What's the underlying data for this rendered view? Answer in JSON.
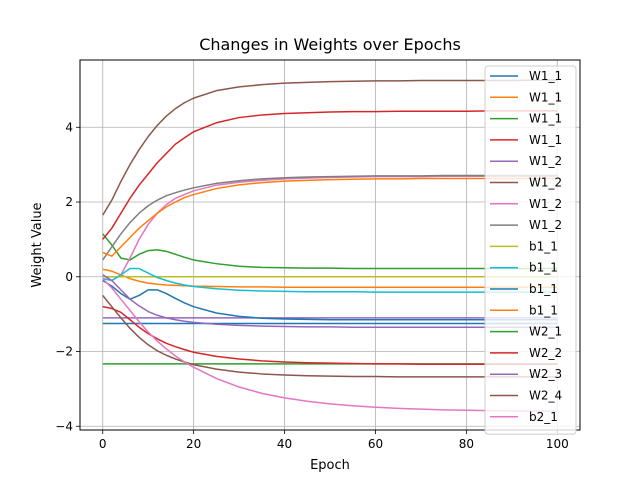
{
  "chart_data": {
    "type": "line",
    "title": "Changes in Weights over Epochs",
    "xlabel": "Epoch",
    "ylabel": "Weight Value",
    "xlim": [
      -5,
      105
    ],
    "ylim": [
      -4.1,
      5.8
    ],
    "xticks": [
      0,
      20,
      40,
      60,
      80,
      100
    ],
    "yticks": [
      -4,
      -2,
      0,
      2,
      4
    ],
    "grid": true,
    "legend_position": "top-right",
    "x": [
      0,
      2,
      4,
      6,
      8,
      10,
      12,
      14,
      16,
      18,
      20,
      25,
      30,
      35,
      40,
      45,
      50,
      55,
      60,
      65,
      70,
      75,
      80,
      85,
      90,
      95,
      100
    ],
    "series": [
      {
        "name": "W1_1",
        "color": "#1f77b4",
        "values": [
          -1.25,
          -1.25,
          -1.25,
          -1.25,
          -1.25,
          -1.25,
          -1.25,
          -1.25,
          -1.25,
          -1.25,
          -1.25,
          -1.25,
          -1.25,
          -1.25,
          -1.25,
          -1.25,
          -1.25,
          -1.25,
          -1.25,
          -1.25,
          -1.25,
          -1.25,
          -1.25,
          -1.25,
          -1.25,
          -1.25,
          -1.25
        ]
      },
      {
        "name": "W1_1",
        "color": "#ff7f0e",
        "values": [
          0.2,
          0.15,
          0.05,
          -0.05,
          -0.12,
          -0.17,
          -0.2,
          -0.22,
          -0.23,
          -0.24,
          -0.25,
          -0.26,
          -0.27,
          -0.27,
          -0.28,
          -0.28,
          -0.28,
          -0.28,
          -0.28,
          -0.28,
          -0.28,
          -0.28,
          -0.28,
          -0.28,
          -0.28,
          -0.28,
          -0.28
        ]
      },
      {
        "name": "W1_1",
        "color": "#2ca02c",
        "values": [
          1.15,
          0.85,
          0.5,
          0.45,
          0.6,
          0.7,
          0.72,
          0.68,
          0.6,
          0.52,
          0.45,
          0.35,
          0.28,
          0.25,
          0.24,
          0.23,
          0.23,
          0.22,
          0.22,
          0.22,
          0.22,
          0.22,
          0.22,
          0.22,
          0.22,
          0.22,
          0.22
        ]
      },
      {
        "name": "W1_1",
        "color": "#d62728",
        "values": [
          1.0,
          1.3,
          1.7,
          2.1,
          2.45,
          2.75,
          3.05,
          3.3,
          3.55,
          3.72,
          3.88,
          4.12,
          4.26,
          4.33,
          4.37,
          4.39,
          4.41,
          4.42,
          4.42,
          4.43,
          4.43,
          4.43,
          4.43,
          4.44,
          4.44,
          4.44,
          4.44
        ]
      },
      {
        "name": "W1_2",
        "color": "#9467bd",
        "values": [
          -1.1,
          -1.1,
          -1.1,
          -1.1,
          -1.1,
          -1.1,
          -1.1,
          -1.1,
          -1.1,
          -1.1,
          -1.1,
          -1.1,
          -1.1,
          -1.1,
          -1.1,
          -1.1,
          -1.1,
          -1.1,
          -1.1,
          -1.1,
          -1.1,
          -1.1,
          -1.1,
          -1.1,
          -1.1,
          -1.1,
          -1.1
        ]
      },
      {
        "name": "W1_2",
        "color": "#8c564b",
        "values": [
          1.65,
          2.05,
          2.55,
          3.0,
          3.4,
          3.75,
          4.05,
          4.3,
          4.5,
          4.66,
          4.78,
          4.98,
          5.08,
          5.14,
          5.18,
          5.2,
          5.22,
          5.23,
          5.24,
          5.24,
          5.25,
          5.25,
          5.25,
          5.25,
          5.25,
          5.26,
          5.26
        ]
      },
      {
        "name": "W1_2",
        "color": "#e377c2",
        "values": [
          0.05,
          -0.1,
          0.05,
          0.5,
          1.0,
          1.4,
          1.7,
          1.93,
          2.1,
          2.2,
          2.3,
          2.45,
          2.53,
          2.58,
          2.62,
          2.64,
          2.66,
          2.67,
          2.68,
          2.68,
          2.68,
          2.69,
          2.69,
          2.69,
          2.69,
          2.69,
          2.69
        ]
      },
      {
        "name": "W1_2",
        "color": "#7f7f7f",
        "values": [
          0.45,
          0.8,
          1.15,
          1.45,
          1.7,
          1.9,
          2.05,
          2.17,
          2.25,
          2.32,
          2.38,
          2.5,
          2.57,
          2.62,
          2.65,
          2.67,
          2.68,
          2.69,
          2.7,
          2.7,
          2.7,
          2.71,
          2.71,
          2.71,
          2.71,
          2.71,
          2.71
        ]
      },
      {
        "name": "b1_1",
        "color": "#bcbd22",
        "values": [
          0.0,
          0.0,
          0.0,
          0.0,
          0.0,
          0.0,
          0.0,
          0.0,
          0.0,
          0.0,
          0.0,
          0.0,
          0.0,
          0.0,
          0.0,
          0.0,
          0.0,
          0.0,
          0.0,
          0.0,
          0.0,
          0.0,
          0.0,
          0.0,
          0.0,
          0.0,
          0.0
        ]
      },
      {
        "name": "b1_1",
        "color": "#17becf",
        "values": [
          -0.05,
          -0.1,
          0.05,
          0.22,
          0.22,
          0.1,
          -0.02,
          -0.1,
          -0.17,
          -0.22,
          -0.26,
          -0.32,
          -0.36,
          -0.38,
          -0.39,
          -0.4,
          -0.4,
          -0.4,
          -0.41,
          -0.41,
          -0.41,
          -0.41,
          -0.41,
          -0.41,
          -0.41,
          -0.41,
          -0.41
        ]
      },
      {
        "name": "b1_1",
        "color": "#1f77b4",
        "values": [
          -0.1,
          -0.25,
          -0.45,
          -0.6,
          -0.5,
          -0.35,
          -0.35,
          -0.45,
          -0.58,
          -0.7,
          -0.8,
          -0.97,
          -1.06,
          -1.11,
          -1.13,
          -1.14,
          -1.15,
          -1.15,
          -1.15,
          -1.15,
          -1.15,
          -1.15,
          -1.15,
          -1.15,
          -1.15,
          -1.15,
          -1.15
        ]
      },
      {
        "name": "b1_1",
        "color": "#ff7f0e",
        "values": [
          0.65,
          0.55,
          0.8,
          1.05,
          1.3,
          1.5,
          1.7,
          1.87,
          2.0,
          2.12,
          2.2,
          2.36,
          2.46,
          2.52,
          2.56,
          2.58,
          2.6,
          2.61,
          2.62,
          2.62,
          2.63,
          2.63,
          2.63,
          2.63,
          2.63,
          2.63,
          2.63
        ]
      },
      {
        "name": "W2_1",
        "color": "#2ca02c",
        "values": [
          -2.33,
          -2.33,
          -2.33,
          -2.33,
          -2.33,
          -2.33,
          -2.33,
          -2.33,
          -2.33,
          -2.33,
          -2.33,
          -2.33,
          -2.33,
          -2.33,
          -2.33,
          -2.33,
          -2.33,
          -2.33,
          -2.33,
          -2.33,
          -2.33,
          -2.33,
          -2.33,
          -2.33,
          -2.33,
          -2.33,
          -2.33
        ]
      },
      {
        "name": "W2_2",
        "color": "#d62728",
        "values": [
          -0.8,
          -0.85,
          -0.95,
          -1.15,
          -1.35,
          -1.52,
          -1.66,
          -1.78,
          -1.87,
          -1.95,
          -2.02,
          -2.13,
          -2.2,
          -2.25,
          -2.28,
          -2.3,
          -2.31,
          -2.32,
          -2.33,
          -2.33,
          -2.34,
          -2.34,
          -2.34,
          -2.34,
          -2.34,
          -2.34,
          -2.34
        ]
      },
      {
        "name": "W2_3",
        "color": "#9467bd",
        "values": [
          0.05,
          -0.1,
          -0.35,
          -0.6,
          -0.78,
          -0.93,
          -1.03,
          -1.1,
          -1.15,
          -1.19,
          -1.22,
          -1.27,
          -1.3,
          -1.32,
          -1.33,
          -1.34,
          -1.34,
          -1.35,
          -1.35,
          -1.35,
          -1.35,
          -1.35,
          -1.35,
          -1.35,
          -1.35,
          -1.35,
          -1.35
        ]
      },
      {
        "name": "W2_4",
        "color": "#8c564b",
        "values": [
          -0.5,
          -0.8,
          -1.1,
          -1.38,
          -1.62,
          -1.82,
          -1.98,
          -2.1,
          -2.2,
          -2.28,
          -2.35,
          -2.47,
          -2.55,
          -2.6,
          -2.63,
          -2.65,
          -2.66,
          -2.67,
          -2.67,
          -2.68,
          -2.68,
          -2.68,
          -2.68,
          -2.68,
          -2.68,
          -2.68,
          -2.68
        ]
      },
      {
        "name": "b2_1",
        "color": "#e377c2",
        "values": [
          -0.05,
          -0.3,
          -0.6,
          -0.9,
          -1.2,
          -1.48,
          -1.72,
          -1.93,
          -2.12,
          -2.28,
          -2.42,
          -2.72,
          -2.95,
          -3.12,
          -3.24,
          -3.33,
          -3.4,
          -3.45,
          -3.49,
          -3.52,
          -3.54,
          -3.56,
          -3.57,
          -3.58,
          -3.59,
          -3.59,
          -3.6
        ]
      }
    ]
  }
}
